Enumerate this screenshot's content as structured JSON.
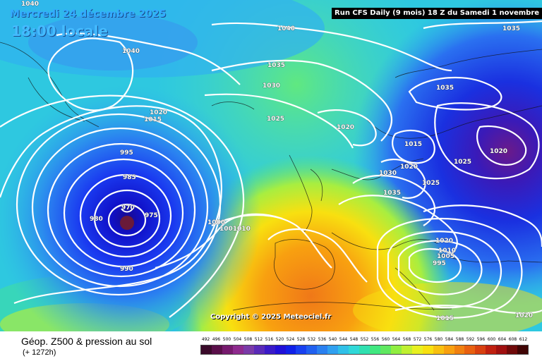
{
  "header": {
    "date": "Mercredi 24 décembre 2025",
    "local_time": "18:00 locale",
    "run_info": "Run CFS Daily (9 mois) 18 Z du Samedi 1 novembre 2025"
  },
  "copyright": "Copyright © 2025 Meteociel.fr",
  "legend": {
    "title": "Géop. Z500 & pression au sol",
    "lead": "(+ 1272h)",
    "scale": [
      {
        "label": "492",
        "color": "#3a0a2a"
      },
      {
        "label": "496",
        "color": "#5a0f4a"
      },
      {
        "label": "500",
        "color": "#761a6e"
      },
      {
        "label": "504",
        "color": "#8e2a8e"
      },
      {
        "label": "508",
        "color": "#7a3aa8"
      },
      {
        "label": "512",
        "color": "#5a2ab8"
      },
      {
        "label": "516",
        "color": "#3a1ac8"
      },
      {
        "label": "520",
        "color": "#2010d8"
      },
      {
        "label": "524",
        "color": "#1020e8"
      },
      {
        "label": "528",
        "color": "#1840f0"
      },
      {
        "label": "532",
        "color": "#2060f0"
      },
      {
        "label": "536",
        "color": "#2a80f0"
      },
      {
        "label": "540",
        "color": "#30a0f0"
      },
      {
        "label": "544",
        "color": "#30c0e8"
      },
      {
        "label": "548",
        "color": "#30d8d8"
      },
      {
        "label": "552",
        "color": "#30e0b0"
      },
      {
        "label": "556",
        "color": "#40e880"
      },
      {
        "label": "560",
        "color": "#60e860"
      },
      {
        "label": "564",
        "color": "#90ee40"
      },
      {
        "label": "568",
        "color": "#c0f030"
      },
      {
        "label": "572",
        "color": "#e8f020"
      },
      {
        "label": "576",
        "color": "#f8e010"
      },
      {
        "label": "580",
        "color": "#f8c010"
      },
      {
        "label": "584",
        "color": "#f8a010"
      },
      {
        "label": "588",
        "color": "#f08010"
      },
      {
        "label": "592",
        "color": "#e86010"
      },
      {
        "label": "596",
        "color": "#d84010"
      },
      {
        "label": "600",
        "color": "#c02010"
      },
      {
        "label": "604",
        "color": "#a01010"
      },
      {
        "label": "608",
        "color": "#700a0a"
      },
      {
        "label": "612",
        "color": "#400505"
      }
    ]
  },
  "isobar_labels": [
    {
      "text": "1040"
    },
    {
      "text": "1040"
    },
    {
      "text": "1040"
    },
    {
      "text": "1035"
    },
    {
      "text": "1030"
    },
    {
      "text": "1020"
    },
    {
      "text": "1015"
    },
    {
      "text": "1025"
    },
    {
      "text": "1020"
    },
    {
      "text": "995"
    },
    {
      "text": "985"
    },
    {
      "text": "970"
    },
    {
      "text": "980"
    },
    {
      "text": "975"
    },
    {
      "text": "990"
    },
    {
      "text": "1000"
    },
    {
      "text": "1001010"
    },
    {
      "text": "1035"
    },
    {
      "text": "1035"
    },
    {
      "text": "1015"
    },
    {
      "text": "1020"
    },
    {
      "text": "1030"
    },
    {
      "text": "1035"
    },
    {
      "text": "1025"
    },
    {
      "text": "1025"
    },
    {
      "text": "1020"
    },
    {
      "text": "1020"
    },
    {
      "text": "1010"
    },
    {
      "text": "1005"
    },
    {
      "text": "995"
    },
    {
      "text": "1015"
    },
    {
      "text": "1020"
    }
  ]
}
